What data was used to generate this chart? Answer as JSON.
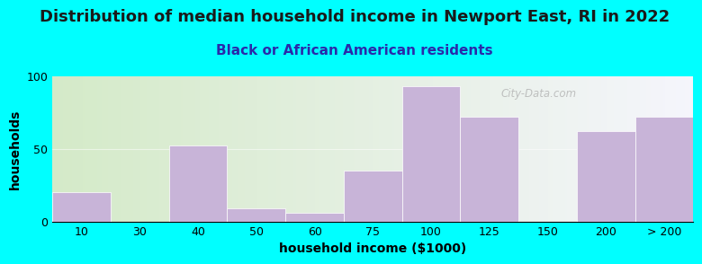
{
  "title": "Distribution of median household income in Newport East, RI in 2022",
  "subtitle": "Black or African American residents",
  "xlabel": "household income ($1000)",
  "ylabel": "households",
  "bar_color": "#c8b4d8",
  "background_color": "#00ffff",
  "gradient_left": "#d4eac8",
  "gradient_right": "#f5f5fc",
  "ylim": [
    0,
    100
  ],
  "yticks": [
    0,
    50,
    100
  ],
  "categories": [
    "10",
    "30",
    "40",
    "50",
    "60",
    "75",
    "100",
    "125",
    "150",
    "200",
    "> 200"
  ],
  "values": [
    20,
    0,
    52,
    9,
    6,
    35,
    93,
    72,
    0,
    62,
    72
  ],
  "watermark": "City-Data.com",
  "title_fontsize": 13,
  "subtitle_fontsize": 11,
  "axis_label_fontsize": 10,
  "subtitle_color": "#2a2aaa"
}
